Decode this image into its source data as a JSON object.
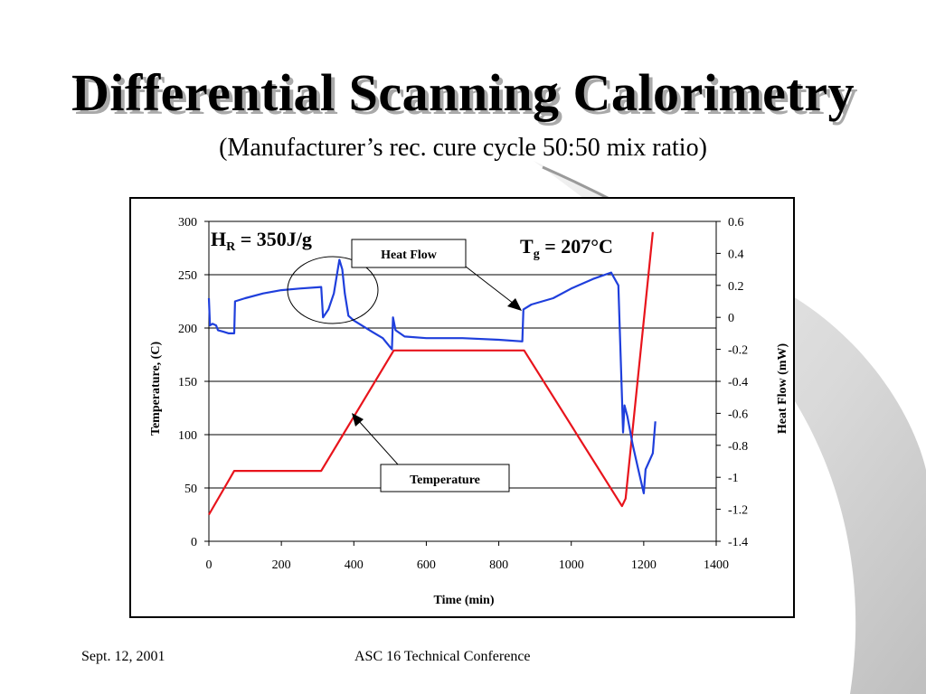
{
  "slide": {
    "title": "Differential Scanning Calorimetry",
    "subtitle": "(Manufacturer’s rec. cure cycle 50:50 mix ratio)",
    "footer_date": "Sept. 12, 2001",
    "footer_conference": "ASC 16 Technical Conference"
  },
  "chart_data": {
    "type": "line",
    "title": "",
    "xlabel": "Time (min)",
    "ylabel": "Temperature, (C)",
    "y2label": "Heat Flow (mW)",
    "xlim": [
      0,
      1400
    ],
    "ylim": [
      0,
      300
    ],
    "y2lim": [
      -1.4,
      0.6
    ],
    "x_ticks": [
      "0",
      "200",
      "400",
      "600",
      "800",
      "1000",
      "1200",
      "1400"
    ],
    "y_ticks": [
      "0",
      "50",
      "100",
      "150",
      "200",
      "250",
      "300"
    ],
    "y2_ticks": [
      "-1.4",
      "-1.2",
      "-1",
      "-0.8",
      "-0.6",
      "-0.4",
      "-0.2",
      "0",
      "0.2",
      "0.4",
      "0.6"
    ],
    "grid": "horizontal",
    "series": [
      {
        "name": "Temperature",
        "axis": "left",
        "color": "#e8141c",
        "points": [
          [
            0,
            25
          ],
          [
            70,
            66
          ],
          [
            310,
            66
          ],
          [
            510,
            179
          ],
          [
            870,
            179
          ],
          [
            1140,
            33
          ],
          [
            1150,
            40
          ],
          [
            1225,
            290
          ]
        ]
      },
      {
        "name": "Heat Flow",
        "axis": "right",
        "color": "#1f3fdc",
        "points": [
          [
            0,
            0.12
          ],
          [
            3,
            -0.05
          ],
          [
            10,
            -0.04
          ],
          [
            20,
            -0.05
          ],
          [
            25,
            -0.08
          ],
          [
            40,
            -0.09
          ],
          [
            55,
            -0.1
          ],
          [
            70,
            -0.1
          ],
          [
            72,
            0.1
          ],
          [
            100,
            0.12
          ],
          [
            150,
            0.15
          ],
          [
            200,
            0.17
          ],
          [
            250,
            0.18
          ],
          [
            310,
            0.19
          ],
          [
            315,
            0.0
          ],
          [
            330,
            0.05
          ],
          [
            345,
            0.15
          ],
          [
            360,
            0.36
          ],
          [
            368,
            0.3
          ],
          [
            375,
            0.15
          ],
          [
            385,
            0.01
          ],
          [
            400,
            -0.02
          ],
          [
            450,
            -0.09
          ],
          [
            480,
            -0.13
          ],
          [
            505,
            -0.2
          ],
          [
            508,
            0.0
          ],
          [
            515,
            -0.08
          ],
          [
            540,
            -0.12
          ],
          [
            600,
            -0.13
          ],
          [
            700,
            -0.13
          ],
          [
            800,
            -0.14
          ],
          [
            865,
            -0.15
          ],
          [
            868,
            0.05
          ],
          [
            890,
            0.08
          ],
          [
            950,
            0.12
          ],
          [
            1000,
            0.18
          ],
          [
            1060,
            0.24
          ],
          [
            1110,
            0.28
          ],
          [
            1120,
            0.24
          ],
          [
            1130,
            0.2
          ],
          [
            1140,
            -0.5
          ],
          [
            1143,
            -0.72
          ],
          [
            1147,
            -0.55
          ],
          [
            1155,
            -0.62
          ],
          [
            1170,
            -0.8
          ],
          [
            1185,
            -0.95
          ],
          [
            1200,
            -1.1
          ],
          [
            1205,
            -0.95
          ],
          [
            1215,
            -0.9
          ],
          [
            1225,
            -0.85
          ],
          [
            1232,
            -0.65
          ]
        ]
      }
    ],
    "annotations": {
      "heat_of_reaction": {
        "main": "H",
        "sub": "R",
        "rest": " = 350J/g"
      },
      "glass_transition": {
        "main": "T",
        "sub": "g",
        "rest": " = 207°C"
      },
      "heat_flow_label": "Heat Flow",
      "temperature_label": "Temperature"
    }
  }
}
